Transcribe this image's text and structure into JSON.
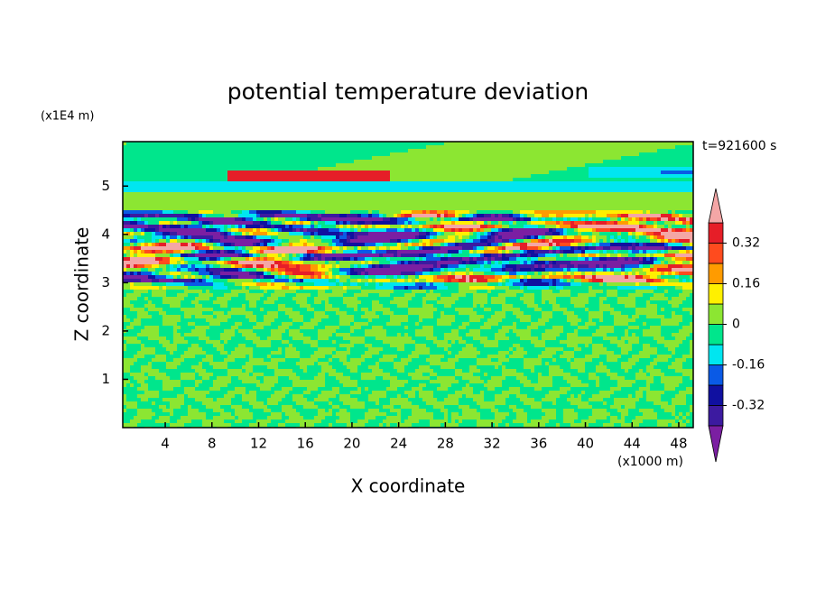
{
  "chart_data": {
    "type": "contour",
    "title": "potential temperature deviation",
    "x_label": "X coordinate",
    "y_label": "Z coordinate",
    "x_unit": "(x1000 m)",
    "y_unit": "(x1E4 m)",
    "annotation": "t=921600 s",
    "xlim": [
      0.36,
      49.24
    ],
    "xticks": [
      4,
      8,
      12,
      16,
      20,
      24,
      28,
      32,
      36,
      40,
      44,
      48
    ],
    "ylim": [
      0,
      5.92
    ],
    "yticks": [
      1,
      2,
      3,
      4,
      5
    ],
    "colorbar": {
      "bounds": [
        -0.4,
        0.4
      ],
      "ticks": [
        -0.32,
        -0.16,
        0,
        0.16,
        0.32
      ],
      "colors": [
        "#7b1fa2",
        "#3c1aa0",
        "#1010a0",
        "#0a5ae6",
        "#00e6f0",
        "#00e68c",
        "#8ce632",
        "#fff000",
        "#ff9b00",
        "#ff4b1e",
        "#e61e28",
        "#f4a6a6"
      ]
    }
  }
}
